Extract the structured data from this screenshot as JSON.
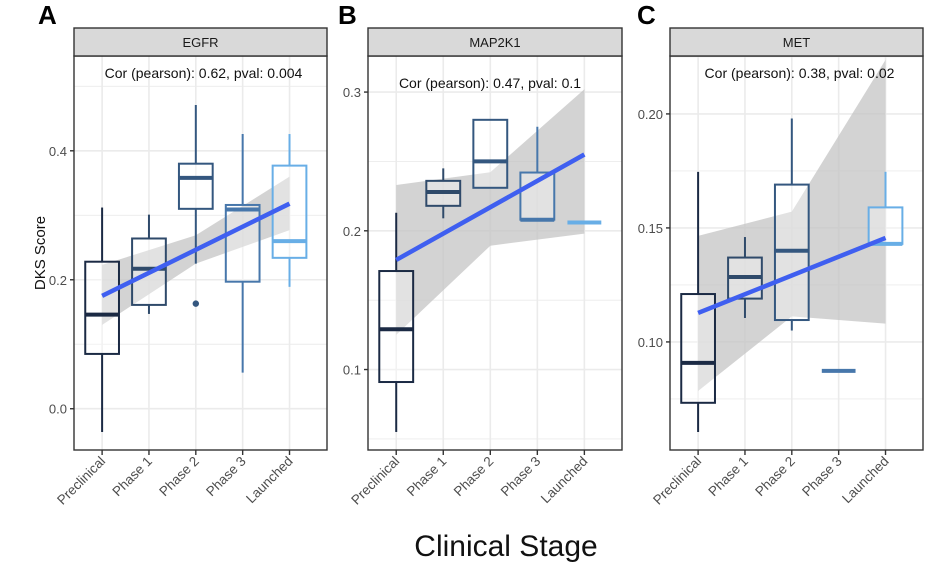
{
  "chart_data": [
    {
      "type": "box",
      "panel_label": "A",
      "title": "EGFR",
      "annotation": "Cor (pearson): 0.62, pval: 0.004",
      "ylabel": "DKS Score",
      "xlabel": "Clinical Stage",
      "categories": [
        "Preclinical",
        "Phase 1",
        "Phase 2",
        "Phase 3",
        "Launched"
      ],
      "ylim": [
        -0.064,
        0.547
      ],
      "yticks": [
        0.0,
        0.2,
        0.4
      ],
      "ytick_labels": [
        "0.0",
        "0.2",
        "0.4"
      ],
      "grid": true,
      "boxes": [
        {
          "whisker_low": -0.036,
          "q1": 0.085,
          "median": 0.146,
          "q3": 0.228,
          "whisker_high": 0.312,
          "outliers": []
        },
        {
          "whisker_low": 0.147,
          "q1": 0.161,
          "median": 0.217,
          "q3": 0.264,
          "whisker_high": 0.301,
          "outliers": []
        },
        {
          "whisker_low": 0.225,
          "q1": 0.31,
          "median": 0.358,
          "q3": 0.38,
          "whisker_high": 0.471,
          "outliers": [
            0.163
          ]
        },
        {
          "whisker_low": 0.056,
          "q1": 0.197,
          "median": 0.309,
          "q3": 0.316,
          "whisker_high": 0.426,
          "outliers": []
        },
        {
          "whisker_low": 0.189,
          "q1": 0.234,
          "median": 0.26,
          "q3": 0.377,
          "whisker_high": 0.426,
          "outliers": []
        }
      ],
      "fit": {
        "start": 0.175,
        "end": 0.318,
        "ci_start": [
          0.13,
          0.223
        ],
        "ci_end": [
          0.277,
          0.36
        ]
      }
    },
    {
      "type": "box",
      "panel_label": "B",
      "title": "MAP2K1",
      "annotation": "Cor (pearson): 0.47, pval: 0.1",
      "categories": [
        "Preclinical",
        "Phase 1",
        "Phase 2",
        "Phase 3",
        "Launched"
      ],
      "ylim": [
        0.042,
        0.326
      ],
      "yticks": [
        0.1,
        0.2,
        0.3
      ],
      "ytick_labels": [
        "0.1",
        "0.2",
        "0.3"
      ],
      "grid": true,
      "boxes": [
        {
          "whisker_low": 0.055,
          "q1": 0.091,
          "median": 0.129,
          "q3": 0.171,
          "whisker_high": 0.213,
          "outliers": []
        },
        {
          "whisker_low": 0.209,
          "q1": 0.218,
          "median": 0.228,
          "q3": 0.236,
          "whisker_high": 0.245,
          "outliers": []
        },
        {
          "whisker_low": 0.231,
          "q1": 0.231,
          "median": 0.25,
          "q3": 0.28,
          "whisker_high": 0.28,
          "outliers": []
        },
        {
          "whisker_low": 0.208,
          "q1": 0.208,
          "median": 0.208,
          "q3": 0.242,
          "whisker_high": 0.275,
          "outliers": []
        },
        {
          "whisker_low": 0.206,
          "q1": 0.206,
          "median": 0.206,
          "q3": 0.206,
          "whisker_high": 0.206,
          "outliers": []
        }
      ],
      "fit": {
        "start": 0.179,
        "end": 0.255,
        "ci_start": [
          0.125,
          0.233
        ],
        "ci_end": [
          0.198,
          0.302
        ]
      }
    },
    {
      "type": "box",
      "panel_label": "C",
      "title": "MET",
      "annotation": "Cor (pearson): 0.38, pval: 0.02",
      "categories": [
        "Preclinical",
        "Phase 1",
        "Phase 2",
        "Phase 3",
        "Launched"
      ],
      "ylim": [
        0.0526,
        0.2254
      ],
      "yticks": [
        0.1,
        0.15,
        0.2
      ],
      "ytick_labels": [
        "0.10",
        "0.15",
        "0.20"
      ],
      "grid": true,
      "boxes": [
        {
          "whisker_low": 0.0605,
          "q1": 0.0733,
          "median": 0.0908,
          "q3": 0.121,
          "whisker_high": 0.1746,
          "outliers": []
        },
        {
          "whisker_low": 0.1105,
          "q1": 0.119,
          "median": 0.1285,
          "q3": 0.137,
          "whisker_high": 0.146,
          "outliers": []
        },
        {
          "whisker_low": 0.105,
          "q1": 0.1096,
          "median": 0.14,
          "q3": 0.169,
          "whisker_high": 0.198,
          "outliers": []
        },
        {
          "whisker_low": 0.0873,
          "q1": 0.0873,
          "median": 0.0873,
          "q3": 0.0873,
          "whisker_high": 0.0873,
          "outliers": []
        },
        {
          "whisker_low": 0.143,
          "q1": 0.143,
          "median": 0.143,
          "q3": 0.159,
          "whisker_high": 0.1746,
          "outliers": []
        }
      ],
      "fit": {
        "start": 0.1127,
        "end": 0.1456,
        "ci_start": [
          0.0785,
          0.1465
        ],
        "ci_end": [
          0.108,
          0.2237
        ]
      }
    }
  ],
  "shared": {
    "ylabel": "DKS Score",
    "xlabel": "Clinical Stage"
  },
  "colors": {
    "categories": [
      "#1b2a44",
      "#2f4a6a",
      "#34577f",
      "#4777ab",
      "#68aee6"
    ],
    "fit_line": "#3f5ff0",
    "ci_band": "#c4c4c4",
    "strip_bg": "#d9d9d9",
    "grid": "#ebebeb"
  }
}
